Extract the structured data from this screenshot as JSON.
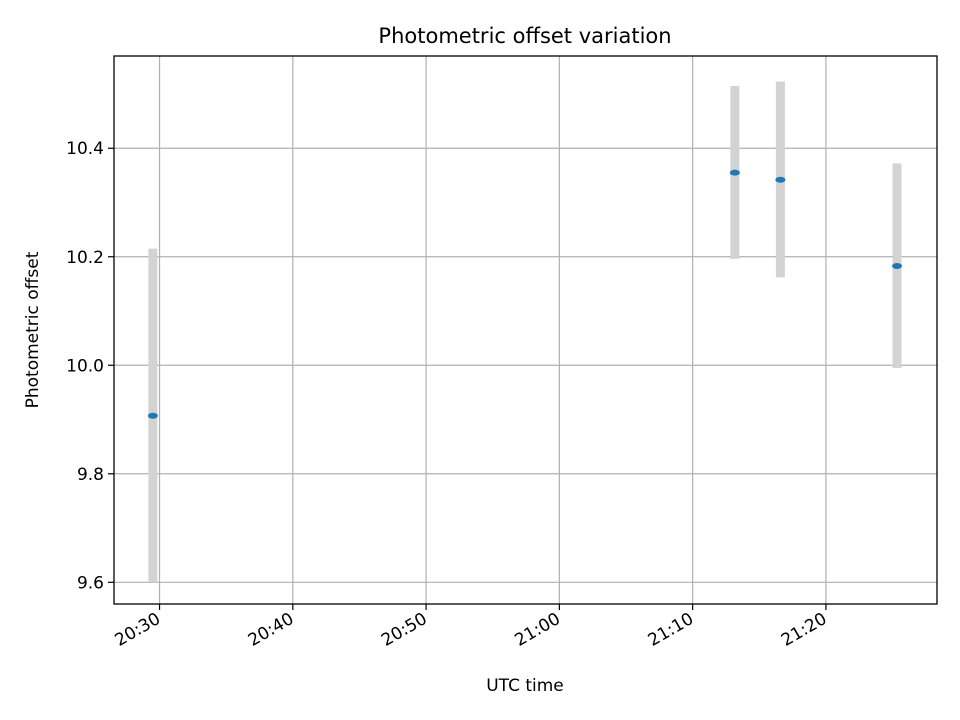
{
  "chart_data": {
    "type": "scatter",
    "title": "Photometric offset variation",
    "xlabel": "UTC time",
    "ylabel": "Photometric offset",
    "x_axis": "time",
    "xlim": [
      "20:26:35",
      "21:28:20"
    ],
    "ylim": [
      9.56,
      10.57
    ],
    "x_ticks": [
      "20:30",
      "20:40",
      "20:50",
      "21:00",
      "21:10",
      "21:20"
    ],
    "y_ticks": [
      9.6,
      9.8,
      10.0,
      10.2,
      10.4
    ],
    "y_tick_labels": [
      "9.6",
      "9.8",
      "10.0",
      "10.2",
      "10.4"
    ],
    "grid": true,
    "points": [
      {
        "x": "20:29:30",
        "y": 9.907,
        "y_low": 9.6,
        "y_high": 10.215
      },
      {
        "x": "21:13:10",
        "y": 10.355,
        "y_low": 10.196,
        "y_high": 10.515
      },
      {
        "x": "21:16:35",
        "y": 10.342,
        "y_low": 10.162,
        "y_high": 10.523
      },
      {
        "x": "21:25:20",
        "y": 10.183,
        "y_low": 9.995,
        "y_high": 10.372
      }
    ],
    "colors": {
      "marker": "#1f77b4",
      "errorbar": "#d3d3d3",
      "grid": "#b0b0b0",
      "axes": "#000000"
    }
  }
}
